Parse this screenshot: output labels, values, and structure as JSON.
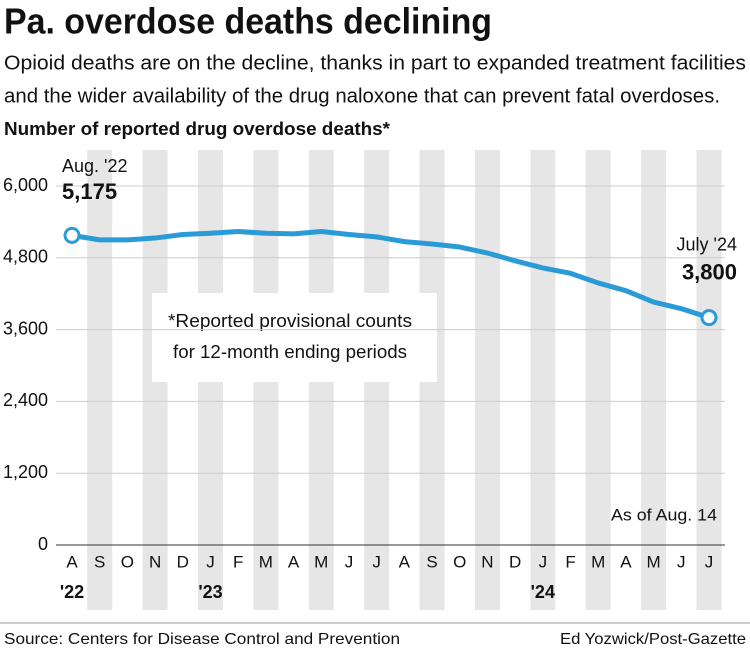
{
  "chart_data": {
    "type": "line",
    "title": "Pa. overdose deaths declining",
    "subtitle": [
      "Opioid deaths are on the decline, thanks in part to expanded treatment facilities",
      "and the wider availability of the drug naloxone that can prevent fatal overdoses."
    ],
    "y_label": "Number of reported drug overdose deaths*",
    "categories": [
      "A",
      "S",
      "O",
      "N",
      "D",
      "J",
      "F",
      "M",
      "A",
      "M",
      "J",
      "J",
      "A",
      "S",
      "O",
      "N",
      "D",
      "J",
      "F",
      "M",
      "A",
      "M",
      "J",
      "J"
    ],
    "year_labels": [
      "'22",
      null,
      null,
      null,
      null,
      "'23",
      null,
      null,
      null,
      null,
      null,
      null,
      null,
      null,
      null,
      null,
      null,
      "'24",
      null,
      null,
      null,
      null,
      null,
      null
    ],
    "series": [
      {
        "name": "Overdose deaths",
        "color": "#2a9bd7",
        "values": [
          5175,
          5100,
          5100,
          5130,
          5190,
          5210,
          5240,
          5210,
          5200,
          5240,
          5190,
          5150,
          5070,
          5030,
          4980,
          4880,
          4750,
          4630,
          4540,
          4380,
          4250,
          4060,
          3950,
          3800
        ],
        "value_labels": [
          "5,175",
          null,
          null,
          null,
          null,
          null,
          null,
          null,
          null,
          null,
          null,
          null,
          null,
          null,
          null,
          null,
          null,
          null,
          null,
          null,
          null,
          null,
          null,
          "3,800"
        ],
        "point_labels": [
          "Aug. '22",
          null,
          null,
          null,
          null,
          null,
          null,
          null,
          null,
          null,
          null,
          null,
          null,
          null,
          null,
          null,
          null,
          null,
          null,
          null,
          null,
          null,
          null,
          "July '24"
        ]
      }
    ],
    "ylim": [
      0,
      6000
    ],
    "yticks": [
      0,
      {
        "value": 1200,
        "label": "1,200"
      },
      {
        "value": 2400,
        "label": "2,400"
      },
      {
        "value": 3600,
        "label": "3,600"
      },
      {
        "value": 4800,
        "label": "4,800"
      },
      {
        "value": 6000,
        "label": "6,000"
      }
    ],
    "grid": true,
    "note": [
      "*Reported provisional counts",
      "for 12-month ending periods"
    ],
    "as_of": "As of Aug. 14",
    "source": "Source: Centers for Disease Control and Prevention",
    "credit": "Ed Yozwick/Post-Gazette"
  }
}
